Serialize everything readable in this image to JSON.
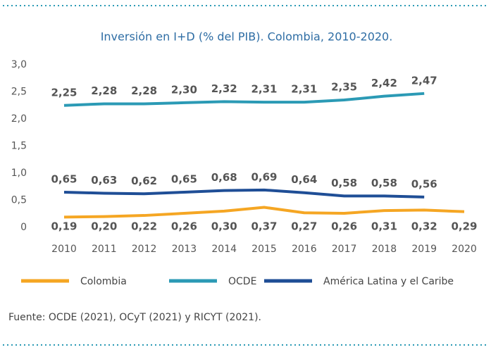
{
  "chart_data": {
    "type": "line",
    "title": "Inversión en I+D (% del PIB). Colombia, 2010-2020.",
    "categories": [
      "2010",
      "2011",
      "2012",
      "2013",
      "2014",
      "2015",
      "2016",
      "2017",
      "2018",
      "2019",
      "2020"
    ],
    "series": [
      {
        "name": "Colombia",
        "color": "#f5a623",
        "values": [
          0.19,
          0.2,
          0.22,
          0.26,
          0.3,
          0.37,
          0.27,
          0.26,
          0.31,
          0.32,
          0.29
        ],
        "value_labels": [
          "0,19",
          "0,20",
          "0,22",
          "0,26",
          "0,30",
          "0,37",
          "0,27",
          "0,26",
          "0,31",
          "0,32",
          "0,29"
        ]
      },
      {
        "name": "OCDE",
        "color": "#2b9ab5",
        "values": [
          2.25,
          2.28,
          2.28,
          2.3,
          2.32,
          2.31,
          2.31,
          2.35,
          2.42,
          2.47,
          null
        ],
        "value_labels": [
          "2,25",
          "2,28",
          "2,28",
          "2,30",
          "2,32",
          "2,31",
          "2,31",
          "2,35",
          "2,42",
          "2,47",
          null
        ]
      },
      {
        "name": "América Latina y el Caribe",
        "color": "#1f4e96",
        "values": [
          0.65,
          0.63,
          0.62,
          0.65,
          0.68,
          0.69,
          0.64,
          0.58,
          0.58,
          0.56,
          null
        ],
        "value_labels": [
          "0,65",
          "0,63",
          "0,62",
          "0,65",
          "0,68",
          "0,69",
          "0,64",
          "0,58",
          "0,58",
          "0,56",
          null
        ]
      }
    ],
    "ylim": [
      0,
      3
    ],
    "yticks": [
      0,
      {
        "value": 0.5,
        "label": "0,5"
      },
      {
        "value": 1,
        "label": "1,0"
      },
      {
        "value": 1.5,
        "label": "1,5"
      },
      {
        "value": 2,
        "label": "2,0"
      },
      {
        "value": 2.5,
        "label": "2,5"
      },
      {
        "value": 3,
        "label": "3,0"
      }
    ],
    "grid": false,
    "legend": "bottom"
  },
  "source": "Fuente: OCDE (2021), OCyT (2021) y RICYT (2021)."
}
